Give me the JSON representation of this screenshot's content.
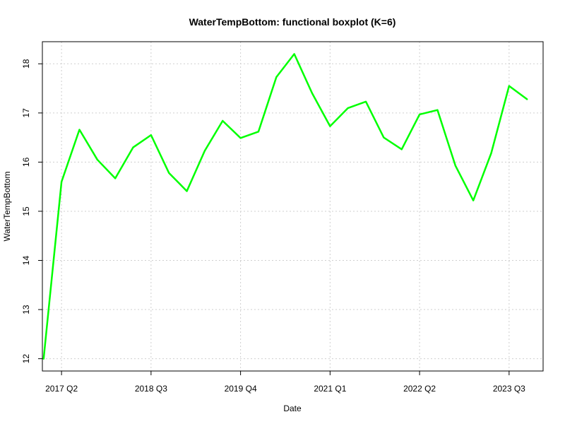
{
  "chart_data": {
    "type": "line",
    "title": "WaterTempBottom: functional boxplot (K=6)",
    "xlabel": "Date",
    "ylabel": "WaterTempBottom",
    "x_ticks": [
      "2017 Q2",
      "2018 Q3",
      "2019 Q4",
      "2021 Q1",
      "2022 Q2",
      "2023 Q3"
    ],
    "y_ticks": [
      12,
      13,
      14,
      15,
      16,
      17,
      18
    ],
    "ylim": [
      11.75,
      18.45
    ],
    "xlim": [
      "2017 Q1",
      "2023 Q4"
    ],
    "grid": true,
    "line_color": "#00ff00",
    "series": [
      {
        "x": [
          "2017 Q1",
          "2017 Q2",
          "2017 Q3",
          "2017 Q4",
          "2018 Q1",
          "2018 Q2",
          "2018 Q3",
          "2018 Q4",
          "2019 Q1",
          "2019 Q2",
          "2019 Q3",
          "2019 Q4",
          "2020 Q1",
          "2020 Q2",
          "2020 Q3",
          "2020 Q4",
          "2021 Q1",
          "2021 Q2",
          "2021 Q3",
          "2021 Q4",
          "2022 Q1",
          "2022 Q2",
          "2022 Q3",
          "2022 Q4",
          "2023 Q1",
          "2023 Q2",
          "2023 Q3",
          "2023 Q4"
        ],
        "values": [
          12.0,
          15.6,
          16.66,
          16.05,
          15.67,
          16.3,
          16.55,
          15.78,
          15.41,
          16.23,
          16.84,
          16.49,
          16.62,
          17.73,
          18.2,
          17.4,
          16.73,
          17.1,
          17.23,
          16.5,
          16.26,
          16.97,
          17.06,
          15.93,
          15.22,
          16.18,
          17.55,
          17.28
        ]
      }
    ]
  }
}
